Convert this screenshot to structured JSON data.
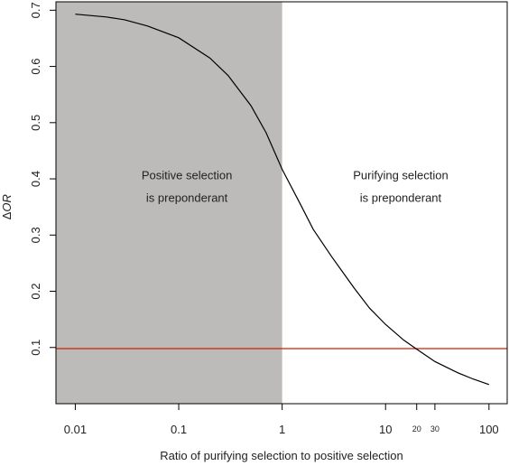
{
  "chart_data": {
    "type": "line",
    "xlabel": "Ratio of purifying selection to positive selection",
    "ylabel_prefix": "Δ",
    "ylabel_italic": "OR",
    "x_scale": "log",
    "xlim": [
      0.0065,
      150
    ],
    "ylim": [
      0,
      0.715
    ],
    "x_ticks": [
      {
        "value": 0.01,
        "label": "0.01",
        "small": false
      },
      {
        "value": 0.1,
        "label": "0.1",
        "small": false
      },
      {
        "value": 1,
        "label": "1",
        "small": false
      },
      {
        "value": 10,
        "label": "10",
        "small": false
      },
      {
        "value": 20,
        "label": "20",
        "small": true
      },
      {
        "value": 30,
        "label": "30",
        "small": true
      },
      {
        "value": 100,
        "label": "100",
        "small": false
      }
    ],
    "y_ticks": [
      {
        "value": 0.1,
        "label": "0.1"
      },
      {
        "value": 0.2,
        "label": "0.2"
      },
      {
        "value": 0.3,
        "label": "0.3"
      },
      {
        "value": 0.4,
        "label": "0.4"
      },
      {
        "value": 0.5,
        "label": "0.5"
      },
      {
        "value": 0.6,
        "label": "0.6"
      },
      {
        "value": 0.7,
        "label": "0.7"
      }
    ],
    "series": [
      {
        "color": "#000000",
        "x": [
          0.01,
          0.02,
          0.03,
          0.05,
          0.1,
          0.2,
          0.3,
          0.5,
          0.7,
          1,
          1.5,
          2,
          3,
          5,
          7,
          10,
          15,
          20,
          30,
          50,
          70,
          100
        ],
        "y": [
          0.693,
          0.688,
          0.683,
          0.672,
          0.651,
          0.615,
          0.584,
          0.53,
          0.482,
          0.417,
          0.355,
          0.31,
          0.262,
          0.205,
          0.17,
          0.141,
          0.113,
          0.097,
          0.075,
          0.055,
          0.044,
          0.034
        ]
      }
    ],
    "reference_line": {
      "y": 0.098,
      "color": "#cc2200"
    },
    "shaded_region": {
      "x_from": 0.0065,
      "x_to": 1,
      "color": "#bdbbb9"
    },
    "annotations": [
      {
        "lines": [
          "Positive selection",
          "is preponderant"
        ],
        "x": 0.12,
        "y": 0.38
      },
      {
        "lines": [
          "Purifying selection",
          "is preponderant"
        ],
        "x": 14,
        "y": 0.38
      }
    ]
  }
}
